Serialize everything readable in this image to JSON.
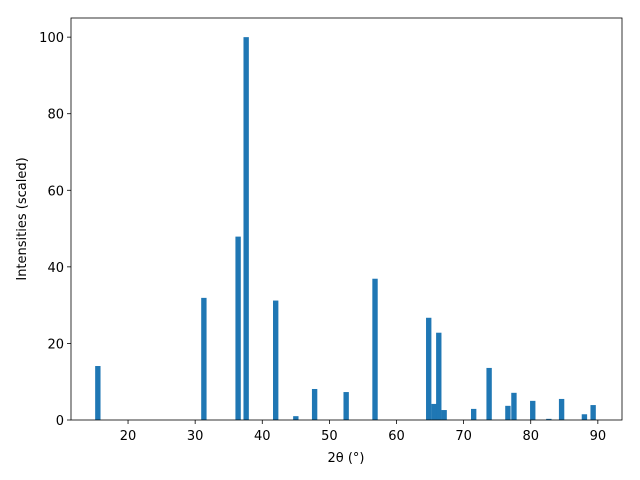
{
  "chart_data": {
    "type": "bar",
    "x_label": "2θ (°)",
    "y_label": "Intensities (scaled)",
    "x": [
      15.5,
      31.3,
      36.4,
      37.6,
      42.0,
      45.0,
      47.8,
      52.5,
      56.8,
      64.8,
      65.6,
      66.3,
      67.1,
      71.5,
      73.8,
      76.6,
      77.5,
      80.3,
      82.7,
      84.6,
      88.0,
      89.3
    ],
    "values": [
      14.1,
      31.9,
      47.9,
      100,
      31.2,
      1.0,
      8.1,
      7.3,
      36.9,
      26.7,
      4.2,
      22.8,
      2.6,
      2.9,
      13.6,
      3.7,
      7.1,
      5.0,
      0.3,
      5.5,
      1.5,
      3.9
    ],
    "color": "#1f77b4",
    "xlim": [
      11.5,
      93.6
    ],
    "xticks": [
      20,
      30,
      40,
      50,
      60,
      70,
      80,
      90
    ],
    "ylim": [
      0,
      105
    ],
    "yticks": [
      0,
      20,
      40,
      60,
      80,
      100
    ],
    "grid": false
  }
}
